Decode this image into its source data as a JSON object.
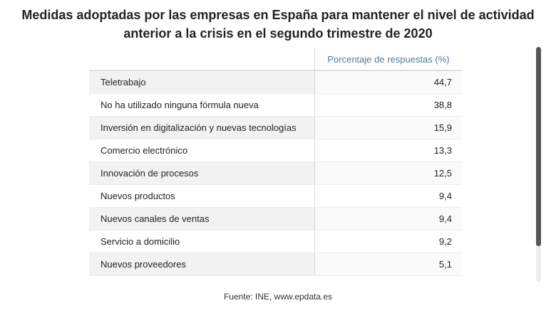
{
  "header": {
    "title": "Medidas adoptadas por las empresas en España para mantener el nivel de actividad anterior a la crisis en el segundo trimestre de 2020"
  },
  "table": {
    "columns": [
      "Porcentaje de respuestas (%)"
    ],
    "rows": [
      [
        "Teletrabajo",
        "44,7"
      ],
      [
        "No ha utilizado ninguna fórmula nueva",
        "38,8"
      ],
      [
        "Inversión en digitalización y nuevas tecnologías",
        "15,9"
      ],
      [
        "Comercio electrónico",
        "13,3"
      ],
      [
        "Innovación de procesos",
        "12,5"
      ],
      [
        "Nuevos productos",
        "9,4"
      ],
      [
        "Nuevos canales de ventas",
        "9,4"
      ],
      [
        "Servicio a domicilio",
        "9,2"
      ],
      [
        "Nuevos proveedores",
        "5,1"
      ]
    ]
  },
  "footer": {
    "source": "Fuente: INE, www.epdata.es"
  }
}
